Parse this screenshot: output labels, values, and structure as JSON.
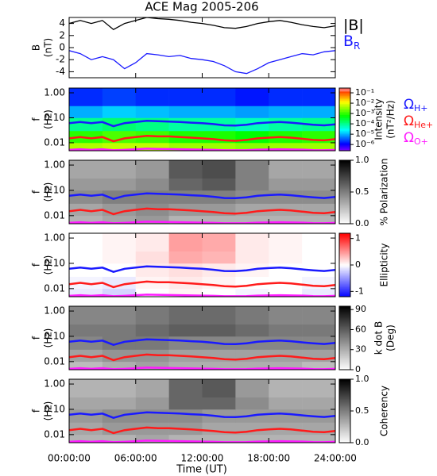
{
  "chart_data": [
    {
      "type": "line",
      "title": "ACE Mag 2005-206",
      "ylabel": [
        "B",
        "(nT)"
      ],
      "xlim": [
        0,
        24
      ],
      "ylim": [
        -5,
        5
      ],
      "yticks": [
        -4,
        -2,
        0,
        2,
        4
      ],
      "x": [
        0,
        1,
        2,
        3,
        4,
        5,
        6,
        7,
        8,
        9,
        10,
        11,
        12,
        13,
        14,
        15,
        16,
        17,
        18,
        19,
        20,
        21,
        22,
        23,
        24
      ],
      "series": [
        {
          "name": "|B|",
          "color": "#000000",
          "values": [
            4,
            4.5,
            4,
            4.5,
            3,
            4,
            4.5,
            5,
            4.8,
            4.7,
            4.5,
            4.2,
            4,
            3.7,
            3.3,
            3.2,
            3.5,
            4,
            4.3,
            4.5,
            4.2,
            3.8,
            3.5,
            3.3,
            3.6
          ]
        },
        {
          "name": "B",
          "subscript": "R",
          "color": "#1a1aff",
          "values": [
            -0.5,
            -1,
            -2,
            -1.5,
            -2,
            -3.5,
            -2.5,
            -1,
            -1.2,
            -1.5,
            -1.3,
            -1.8,
            -2,
            -2.3,
            -3,
            -4,
            -4.3,
            -3.5,
            -2.5,
            -2,
            -1.5,
            -1,
            -1.2,
            -0.7,
            -0.5
          ]
        }
      ]
    },
    {
      "type": "spectrogram",
      "ylabel": [
        "f",
        "(Hz)"
      ],
      "log_y": true,
      "xlim": [
        0,
        24
      ],
      "ylim": [
        0.0048,
        1.55
      ],
      "yticks": [
        {
          "value": 1,
          "label": "1.00"
        },
        {
          "value": 0.1,
          "label": "0.10"
        },
        {
          "value": 0.01,
          "label": "0.01"
        }
      ],
      "time_bins": [
        0,
        3,
        6,
        9,
        12,
        15,
        18,
        21,
        24
      ],
      "freq_bins": [
        0.0048,
        0.01,
        0.03,
        0.1,
        0.3,
        1.55
      ],
      "z": [
        [
          0.005,
          0.006,
          0.006,
          0.004,
          0.004,
          0.003,
          0.004,
          0.004
        ],
        [
          0.001,
          0.0015,
          0.0012,
          0.0008,
          0.0008,
          0.0006,
          0.0008,
          0.001
        ],
        [
          0.0001,
          0.00015,
          0.00012,
          8e-05,
          8e-05,
          6e-05,
          8e-05,
          0.0001
        ],
        [
          1e-05,
          1.5e-05,
          1.2e-05,
          1e-05,
          1e-05,
          8e-06,
          1e-05,
          1e-05
        ],
        [
          2e-06,
          2.5e-06,
          2e-06,
          2e-06,
          2e-06,
          1.5e-06,
          2e-06,
          2e-06
        ]
      ],
      "zscale": "log",
      "colormap": "rainbow",
      "zlim": [
        2.5e-07,
        0.29
      ],
      "zticks": [
        {
          "value": 0.1,
          "label": "10⁻¹"
        },
        {
          "value": 0.01,
          "label": "10⁻²"
        },
        {
          "value": 0.001,
          "label": "10⁻³"
        },
        {
          "value": 0.0001,
          "label": "10⁻⁴"
        },
        {
          "value": 1e-05,
          "label": "10⁻⁵"
        },
        {
          "value": 1e-06,
          "label": "10⁻⁶"
        }
      ],
      "zlabel": [
        "Intensity",
        "(nT²/Hz)"
      ],
      "overlay": {
        "x": [
          0,
          1,
          2,
          3,
          4,
          5,
          6,
          7,
          8,
          9,
          10,
          11,
          12,
          13,
          14,
          15,
          16,
          17,
          18,
          19,
          20,
          21,
          22,
          23,
          24
        ],
        "series": [
          {
            "name": "Ω",
            "subscript": "H+",
            "color": "#1a1aff",
            "values": [
              0.061,
              0.068,
              0.061,
              0.068,
              0.046,
              0.061,
              0.068,
              0.076,
              0.073,
              0.071,
              0.068,
              0.064,
              0.061,
              0.056,
              0.05,
              0.049,
              0.053,
              0.061,
              0.065,
              0.068,
              0.064,
              0.058,
              0.053,
              0.05,
              0.055
            ]
          },
          {
            "name": "Ω",
            "subscript": "He+",
            "color": "#ff1a1a",
            "values": [
              0.015,
              0.017,
              0.015,
              0.017,
              0.0115,
              0.015,
              0.017,
              0.019,
              0.018,
              0.018,
              0.017,
              0.016,
              0.015,
              0.014,
              0.0125,
              0.012,
              0.013,
              0.015,
              0.016,
              0.017,
              0.016,
              0.0145,
              0.013,
              0.0125,
              0.014
            ]
          },
          {
            "name": "Ω",
            "subscript": "O+",
            "color": "#ff1aff",
            "values": [
              0.0052,
              0.0055,
              0.0052,
              0.0055,
              0.005,
              0.0052,
              0.0055,
              0.0058,
              0.0057,
              0.0056,
              0.0055,
              0.0054,
              0.0053,
              0.0052,
              0.005,
              0.005,
              0.0051,
              0.0053,
              0.0054,
              0.0055,
              0.0054,
              0.0053,
              0.0051,
              0.005,
              0.0052
            ]
          }
        ]
      }
    },
    {
      "type": "spectrogram",
      "ylabel": [
        "f",
        "(Hz)"
      ],
      "log_y": true,
      "xlim": [
        0,
        24
      ],
      "ylim": [
        0.0048,
        1.55
      ],
      "yticks": [
        {
          "value": 1,
          "label": "1.00"
        },
        {
          "value": 0.1,
          "label": "0.10"
        },
        {
          "value": 0.01,
          "label": "0.01"
        }
      ],
      "z": [
        [
          0.3,
          0.35,
          0.4,
          0.3,
          0.3,
          0.3,
          0.3,
          0.3
        ],
        [
          0.35,
          0.4,
          0.45,
          0.4,
          0.4,
          0.35,
          0.35,
          0.35
        ],
        [
          0.45,
          0.5,
          0.5,
          0.5,
          0.5,
          0.45,
          0.45,
          0.45
        ],
        [
          0.4,
          0.4,
          0.45,
          0.6,
          0.65,
          0.5,
          0.4,
          0.4
        ],
        [
          0.35,
          0.35,
          0.4,
          0.65,
          0.7,
          0.5,
          0.35,
          0.35
        ]
      ],
      "zscale": "linear",
      "colormap": "gray",
      "zlim": [
        0,
        1
      ],
      "zticks": [
        {
          "value": 1,
          "label": "1.0"
        },
        {
          "value": 0.5,
          "label": "0.5"
        },
        {
          "value": 0,
          "label": "0.0"
        }
      ],
      "zlabel": [
        "% Polarization"
      ]
    },
    {
      "type": "spectrogram",
      "ylabel": [
        "f",
        "(Hz)"
      ],
      "log_y": true,
      "xlim": [
        0,
        24
      ],
      "ylim": [
        0.0048,
        1.55
      ],
      "yticks": [
        {
          "value": 1,
          "label": "1.00"
        },
        {
          "value": 0.1,
          "label": "0.10"
        },
        {
          "value": 0.01,
          "label": "0.01"
        }
      ],
      "z": [
        [
          -0.1,
          -0.2,
          0,
          0.05,
          0,
          -0.05,
          0,
          -0.1
        ],
        [
          -0.05,
          -0.1,
          0.05,
          0.1,
          0.05,
          0,
          0,
          -0.05
        ],
        [
          0,
          0,
          0.1,
          0.15,
          0.1,
          0.05,
          0,
          0
        ],
        [
          0,
          0.05,
          0.15,
          0.4,
          0.35,
          0.1,
          0.05,
          0
        ],
        [
          0,
          0.05,
          0.1,
          0.45,
          0.4,
          0.1,
          0.05,
          0
        ]
      ],
      "zscale": "linear",
      "colormap": "bwr",
      "zlim": [
        -1.2,
        1.2
      ],
      "zticks": [
        1,
        0,
        -1
      ],
      "zlabel": [
        "Ellipticity"
      ]
    },
    {
      "type": "spectrogram",
      "ylabel": [
        "f",
        "(Hz)"
      ],
      "log_y": true,
      "xlim": [
        0,
        24
      ],
      "ylim": [
        0.0048,
        1.55
      ],
      "yticks": [
        {
          "value": 1,
          "label": "1.00"
        },
        {
          "value": 0.1,
          "label": "0.10"
        },
        {
          "value": 0.01,
          "label": "0.01"
        }
      ],
      "z": [
        [
          25,
          30,
          35,
          30,
          30,
          30,
          30,
          25
        ],
        [
          35,
          40,
          40,
          35,
          35,
          35,
          35,
          35
        ],
        [
          45,
          50,
          50,
          45,
          45,
          45,
          45,
          45
        ],
        [
          50,
          50,
          55,
          60,
          60,
          55,
          50,
          50
        ],
        [
          45,
          45,
          50,
          55,
          55,
          50,
          45,
          45
        ]
      ],
      "zscale": "linear",
      "colormap": "gray",
      "zlim": [
        0,
        95
      ],
      "zticks": [
        90,
        60,
        30,
        0
      ],
      "zlabel": [
        "k dot B",
        "(Deg)"
      ]
    },
    {
      "type": "spectrogram",
      "ylabel": [
        "f",
        "(Hz)"
      ],
      "log_y": true,
      "xlim": [
        0,
        24
      ],
      "ylim": [
        0.0048,
        1.55
      ],
      "yticks": [
        {
          "value": 1,
          "label": "1.00"
        },
        {
          "value": 0.1,
          "label": "0.10"
        },
        {
          "value": 0.01,
          "label": "0.01"
        }
      ],
      "z": [
        [
          0.3,
          0.3,
          0.35,
          0.3,
          0.3,
          0.3,
          0.3,
          0.3
        ],
        [
          0.35,
          0.4,
          0.4,
          0.4,
          0.35,
          0.35,
          0.35,
          0.35
        ],
        [
          0.4,
          0.45,
          0.45,
          0.45,
          0.4,
          0.4,
          0.4,
          0.4
        ],
        [
          0.35,
          0.35,
          0.4,
          0.6,
          0.6,
          0.45,
          0.35,
          0.35
        ],
        [
          0.3,
          0.3,
          0.35,
          0.6,
          0.65,
          0.4,
          0.3,
          0.3
        ]
      ],
      "zscale": "linear",
      "colormap": "gray",
      "zlim": [
        0,
        1
      ],
      "zticks": [
        {
          "value": 1,
          "label": "1.0"
        },
        {
          "value": 0.5,
          "label": "0.5"
        },
        {
          "value": 0,
          "label": "0.0"
        }
      ],
      "zlabel": [
        "Coherency"
      ],
      "xticks": [
        {
          "value": 0,
          "label": "00:00:00"
        },
        {
          "value": 6,
          "label": "06:00:00"
        },
        {
          "value": 12,
          "label": "12:00:00"
        },
        {
          "value": 18,
          "label": "18:00:00"
        },
        {
          "value": 24,
          "label": "24:00:00"
        }
      ],
      "xlabel": "Time (UT)"
    }
  ]
}
